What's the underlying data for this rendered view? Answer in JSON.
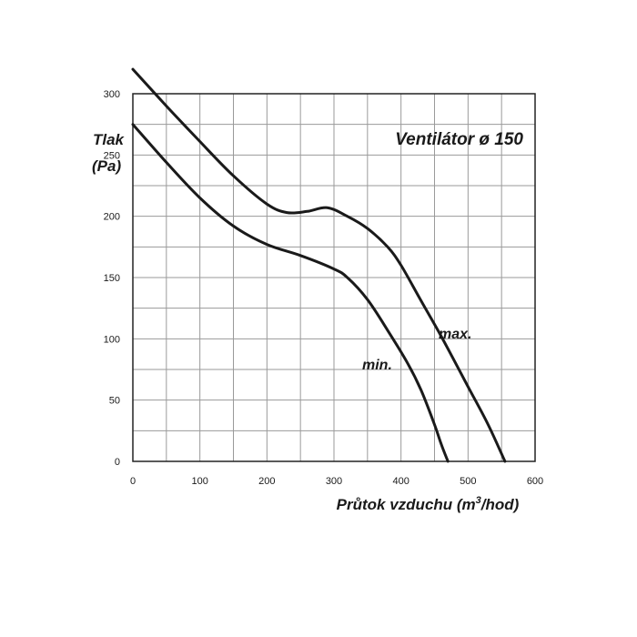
{
  "chart_data": {
    "type": "line",
    "title": "Ventilátor ø 150",
    "ylabel_line1": "Tlak",
    "ylabel_line2": "(Pa)",
    "xlabel_pre": "Průtok vzduchu (m",
    "xlabel_sup": "3",
    "xlabel_post": "/hod)",
    "xlim": [
      0,
      600
    ],
    "ylim": [
      0,
      300
    ],
    "x_ticks": [
      "0",
      "100",
      "200",
      "300",
      "400",
      "500",
      "600"
    ],
    "y_ticks": [
      "0",
      "50",
      "100",
      "150",
      "200",
      "250",
      "300"
    ],
    "grid": true,
    "series": [
      {
        "name": "max.",
        "x": [
          0,
          50,
          100,
          150,
          200,
          230,
          260,
          290,
          320,
          350,
          380,
          400,
          430,
          460,
          500,
          530,
          555
        ],
        "y": [
          320,
          290,
          261,
          233,
          210,
          203,
          204,
          207,
          200,
          190,
          175,
          160,
          131,
          102,
          61,
          30,
          0
        ]
      },
      {
        "name": "min.",
        "x": [
          0,
          50,
          100,
          150,
          200,
          250,
          300,
          320,
          350,
          380,
          410,
          430,
          450,
          460,
          470
        ],
        "y": [
          275,
          244,
          215,
          192,
          177,
          168,
          157,
          150,
          132,
          107,
          80,
          58,
          30,
          14,
          0
        ]
      }
    ]
  }
}
